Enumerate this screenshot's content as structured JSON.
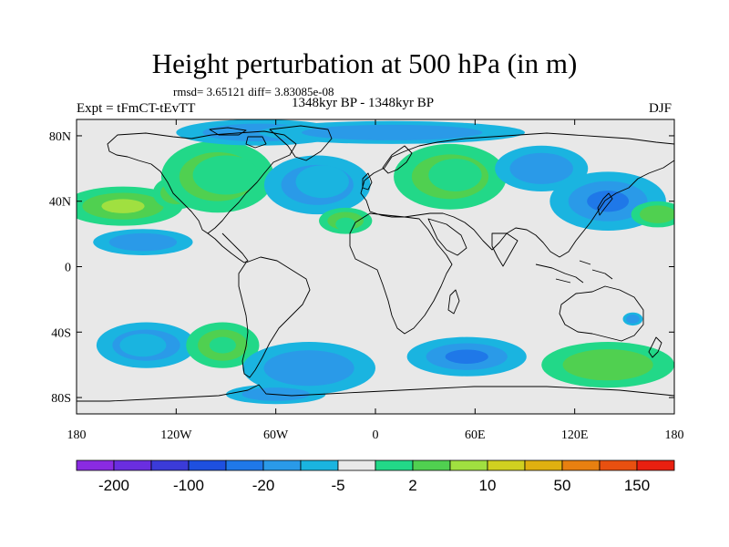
{
  "title": "Height perturbation at 500 hPa (in m)",
  "stats": "rmsd= 3.65121  diff= 3.83085e-08",
  "left_label": "Expt = tFmCT-tEvTT",
  "center_label": "1348kyr BP - 1348kyr BP",
  "right_label": "DJF",
  "map": {
    "projection": "cylindrical equidistant",
    "lon_range": [
      -180,
      180
    ],
    "lat_range": [
      -90,
      90
    ],
    "background_color": "#e8e8e8",
    "lat_ticks": [
      {
        "value": 80,
        "label": "80N"
      },
      {
        "value": 40,
        "label": "40N"
      },
      {
        "value": 0,
        "label": "0"
      },
      {
        "value": -40,
        "label": "40S"
      },
      {
        "value": -80,
        "label": "80S"
      }
    ],
    "lon_ticks": [
      {
        "value": -180,
        "label": "180"
      },
      {
        "value": -120,
        "label": "120W"
      },
      {
        "value": -60,
        "label": "60W"
      },
      {
        "value": 0,
        "label": "0"
      },
      {
        "value": 60,
        "label": "60E"
      },
      {
        "value": 120,
        "label": "120E"
      },
      {
        "value": 180,
        "label": "180"
      }
    ]
  },
  "colorbar": {
    "colors": [
      "#8a2be2",
      "#6a2ee0",
      "#3b3bd8",
      "#1e50e0",
      "#1f78e8",
      "#2a9ae8",
      "#1ab4e0",
      "#e8e8e8",
      "#22d888",
      "#50d050",
      "#a0e040",
      "#d0d020",
      "#e0b010",
      "#e88010",
      "#e85010",
      "#e82010"
    ],
    "labels": [
      {
        "after_box": 1,
        "text": "-200"
      },
      {
        "after_box": 3,
        "text": "-100"
      },
      {
        "after_box": 5,
        "text": "-20"
      },
      {
        "after_box": 7,
        "text": "-5"
      },
      {
        "after_box": 9,
        "text": "2"
      },
      {
        "after_box": 11,
        "text": "10"
      },
      {
        "after_box": 13,
        "text": "50"
      },
      {
        "after_box": 15,
        "text": "150"
      }
    ]
  },
  "anomalies": [
    {
      "name": "north-pacific-positive",
      "lon": -152,
      "lat": 37,
      "rlon": 36,
      "rlat": 12,
      "level": 3
    },
    {
      "name": "north-pacific-positive-east",
      "lon": -120,
      "lat": 45,
      "rlon": 14,
      "rlat": 10,
      "level": 2
    },
    {
      "name": "east-pacific-negative",
      "lon": -140,
      "lat": 15,
      "rlon": 30,
      "rlat": 8,
      "level": -2
    },
    {
      "name": "north-america-positive",
      "lon": -95,
      "lat": 55,
      "rlon": 34,
      "rlat": 22,
      "level": 2
    },
    {
      "name": "north-america-positive-core",
      "lon": -90,
      "lat": 56,
      "rlon": 20,
      "rlat": 12,
      "level": 1
    },
    {
      "name": "arctic-canada-negative",
      "lon": -70,
      "lat": 82,
      "rlon": 50,
      "rlat": 8,
      "level": -2
    },
    {
      "name": "north-atlantic-negative",
      "lon": -35,
      "lat": 50,
      "rlon": 32,
      "rlat": 18,
      "level": -3
    },
    {
      "name": "north-atlantic-negative-core",
      "lon": -32,
      "lat": 52,
      "rlon": 16,
      "rlat": 10,
      "level": -1
    },
    {
      "name": "subtropical-atlantic-positive",
      "lon": -18,
      "lat": 28,
      "rlon": 16,
      "rlat": 8,
      "level": 2
    },
    {
      "name": "subtropical-atlantic-positive-core",
      "lon": -18,
      "lat": 26,
      "rlon": 6,
      "rlat": 4,
      "level": 1
    },
    {
      "name": "eurasia-positive",
      "lon": 45,
      "lat": 55,
      "rlon": 34,
      "rlat": 20,
      "level": 3
    },
    {
      "name": "eurasia-positive-core",
      "lon": 48,
      "lat": 56,
      "rlon": 16,
      "rlat": 10,
      "level": 1
    },
    {
      "name": "north-asia-negative",
      "lon": 100,
      "lat": 60,
      "rlon": 28,
      "rlat": 14,
      "level": -2
    },
    {
      "name": "arctic-negative",
      "lon": 10,
      "lat": 82,
      "rlon": 80,
      "rlat": 7,
      "level": -2
    },
    {
      "name": "north-pacific-west-negative",
      "lon": 140,
      "lat": 40,
      "rlon": 35,
      "rlat": 18,
      "level": -3
    },
    {
      "name": "west-pacific-positive",
      "lon": 170,
      "lat": 32,
      "rlon": 16,
      "rlat": 8,
      "level": 2
    },
    {
      "name": "south-pacific-negative",
      "lon": -138,
      "lat": -48,
      "rlon": 30,
      "rlat": 14,
      "level": -3
    },
    {
      "name": "south-pacific-negative-core",
      "lon": -140,
      "lat": -48,
      "rlon": 14,
      "rlat": 7,
      "level": -1
    },
    {
      "name": "south-america-west-positive",
      "lon": -92,
      "lat": -48,
      "rlon": 22,
      "rlat": 14,
      "level": 2
    },
    {
      "name": "south-america-west-positive-core",
      "lon": -92,
      "lat": -48,
      "rlon": 8,
      "rlat": 5,
      "level": 1
    },
    {
      "name": "south-atlantic-negative",
      "lon": -40,
      "lat": -62,
      "rlon": 40,
      "rlat": 16,
      "level": -2
    },
    {
      "name": "south-indian-negative",
      "lon": 55,
      "lat": -55,
      "rlon": 36,
      "rlat": 12,
      "level": -3
    },
    {
      "name": "south-pacific-east-positive",
      "lon": 140,
      "lat": -60,
      "rlon": 40,
      "rlat": 14,
      "level": 2
    },
    {
      "name": "australia-east-negative",
      "lon": 155,
      "lat": -32,
      "rlon": 6,
      "rlat": 4,
      "level": -2
    },
    {
      "name": "antarctic-negative",
      "lon": -60,
      "lat": -78,
      "rlon": 30,
      "rlat": 6,
      "level": -2
    }
  ]
}
